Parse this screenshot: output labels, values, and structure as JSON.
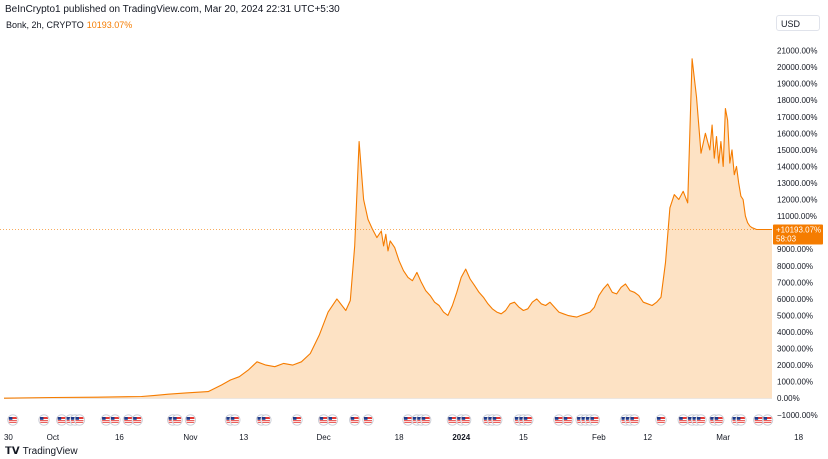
{
  "header": {
    "published": "BeInCrypto1 published on TradingView.com, Mar 20, 2024 22:31 UTC+5:30"
  },
  "legend": {
    "symbol": "Bonk, 2h, CRYPTO",
    "value": "10193.07%"
  },
  "currency_label": "USD",
  "last_price": {
    "value_label": "+10193.07%",
    "countdown": "58:03"
  },
  "footer": {
    "brand": "TradingView"
  },
  "colors": {
    "line": "#f57c00",
    "fill": "#fde2c4",
    "badge": "#f57c00",
    "grid_text": "#131722"
  },
  "chart_data": {
    "type": "area",
    "ylabel": "",
    "y_unit": "%",
    "ylim": [
      -1800,
      22000
    ],
    "y_ticks": [
      -1000,
      0,
      1000,
      2000,
      3000,
      4000,
      5000,
      6000,
      7000,
      8000,
      9000,
      10000,
      11000,
      12000,
      13000,
      14000,
      15000,
      16000,
      17000,
      18000,
      19000,
      20000,
      21000
    ],
    "y_tick_labels": [
      "−1000.00%",
      "0.00%",
      "1000.00%",
      "2000.00%",
      "3000.00%",
      "4000.00%",
      "5000.00%",
      "6000.00%",
      "7000.00%",
      "8000.00%",
      "9000.00%",
      "10000.00%",
      "11000.00%",
      "12000.00%",
      "13000.00%",
      "14000.00%",
      "15000.00%",
      "16000.00%",
      "17000.00%",
      "18000.00%",
      "19000.00%",
      "20000.00%",
      "21000.00%"
    ],
    "x_range": [
      -1,
      172
    ],
    "x_ticks": [
      {
        "day": 0,
        "label": "30"
      },
      {
        "day": 10,
        "label": "Oct"
      },
      {
        "day": 25,
        "label": "16"
      },
      {
        "day": 41,
        "label": "Nov"
      },
      {
        "day": 53,
        "label": "13"
      },
      {
        "day": 71,
        "label": "Dec"
      },
      {
        "day": 88,
        "label": "18"
      },
      {
        "day": 102,
        "label": "2024"
      },
      {
        "day": 116,
        "label": "15"
      },
      {
        "day": 133,
        "label": "Feb"
      },
      {
        "day": 144,
        "label": "12"
      },
      {
        "day": 161,
        "label": "Mar"
      },
      {
        "day": 178,
        "label": "18"
      }
    ],
    "series": [
      {
        "x": [
          -1,
          10,
          20,
          30,
          33,
          36,
          40,
          45,
          48,
          50,
          52,
          54,
          56,
          58,
          60,
          62,
          64,
          66,
          68,
          70,
          72,
          74,
          76,
          77,
          78,
          79,
          80,
          81,
          82,
          83,
          84,
          84.5,
          85,
          85.5,
          86,
          86.5,
          87,
          88,
          89,
          90,
          91,
          92,
          93,
          94,
          95,
          96,
          97,
          98,
          99,
          100,
          101,
          102,
          103,
          104,
          105,
          106,
          107,
          108,
          109,
          110,
          111,
          112,
          113,
          114,
          115,
          116,
          117,
          118,
          119,
          120,
          121,
          122,
          123,
          124,
          125,
          126,
          127,
          128,
          129,
          130,
          131,
          132,
          133,
          134,
          135,
          136,
          137,
          138,
          139,
          140,
          141,
          142,
          143,
          144,
          145,
          146,
          147,
          148,
          149,
          150,
          151,
          152,
          153,
          154,
          155,
          156,
          157,
          158,
          158.5,
          159,
          159.5,
          160,
          160.5,
          161,
          161.5,
          162,
          162.5,
          163,
          163.5,
          164,
          164.5,
          165,
          165.5,
          166,
          166.5,
          167,
          167.5,
          168,
          168.5,
          169,
          169.5,
          170,
          170.5,
          171,
          171.5,
          172
        ],
        "values": [
          0,
          40,
          60,
          100,
          170,
          240,
          320,
          400,
          800,
          1100,
          1300,
          1700,
          2200,
          2000,
          1900,
          2100,
          2000,
          2200,
          2700,
          3800,
          5200,
          6000,
          5300,
          5900,
          9200,
          15500,
          12000,
          10800,
          10200,
          9700,
          10100,
          9200,
          9900,
          8900,
          9500,
          9300,
          9100,
          8300,
          7700,
          7300,
          7100,
          7600,
          7000,
          6500,
          6200,
          5800,
          5600,
          5200,
          5000,
          5600,
          6400,
          7300,
          7800,
          7200,
          6800,
          6400,
          6100,
          5700,
          5400,
          5200,
          5100,
          5300,
          5700,
          5800,
          5500,
          5300,
          5400,
          5800,
          6000,
          5700,
          5600,
          5800,
          5500,
          5200,
          5100,
          5000,
          4950,
          4900,
          5000,
          5100,
          5200,
          5500,
          6200,
          6600,
          6900,
          6400,
          6300,
          6700,
          6900,
          6500,
          6400,
          6200,
          5800,
          5700,
          5600,
          5800,
          6100,
          8200,
          11500,
          12300,
          12000,
          12500,
          11800,
          20500,
          18200,
          14800,
          16000,
          15000,
          16500,
          14500,
          15800,
          14200,
          15500,
          14000,
          17500,
          16800,
          14200,
          15000,
          13500,
          14000,
          13000,
          12200,
          12000,
          11000,
          10600,
          10400,
          10300,
          10250,
          10193,
          10193,
          10193,
          10193,
          10193,
          10193,
          10193,
          10193
        ]
      }
    ],
    "event_markers_days": [
      1,
      8,
      12,
      14,
      15,
      16,
      22,
      24,
      27,
      29,
      37,
      38,
      41,
      50,
      51,
      57,
      58,
      65,
      71,
      73,
      78,
      81,
      90,
      92,
      93,
      94,
      100,
      102,
      103,
      108,
      109,
      110,
      115,
      116,
      117,
      124,
      126,
      129,
      130,
      131,
      132,
      139,
      140,
      141,
      147,
      152,
      154,
      155,
      156,
      159,
      160,
      164,
      165,
      169,
      171
    ]
  }
}
